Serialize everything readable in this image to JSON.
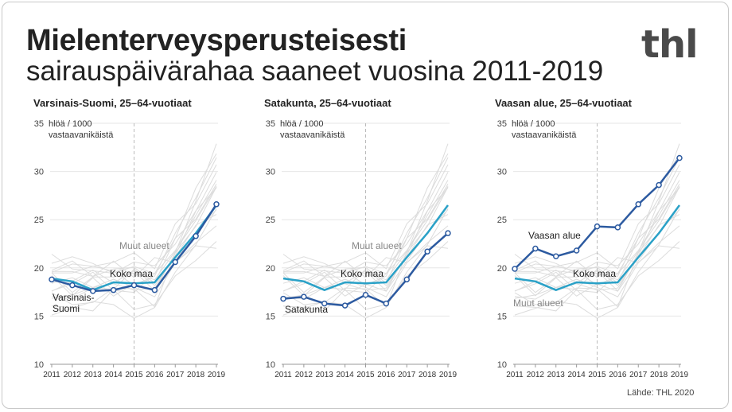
{
  "title": {
    "line1": "Mielenterveysperusteisesti",
    "line2": "sairauspäivärahaa saaneet vuosina 2011-2019"
  },
  "logo": "thl",
  "source": "Lähde: THL 2020",
  "colors": {
    "region": "#2c5aa0",
    "national": "#2aa1c7",
    "others": "#dcdcdc",
    "axis": "#999999",
    "grid": "#e6e6e6"
  },
  "chart_data": [
    {
      "type": "line",
      "title": "Varsinais-Suomi, 25–64-vuotiaat",
      "ylabel_line1": "hlöä / 1000",
      "ylabel_line2": "vastaavanikäistä",
      "x": [
        2011,
        2012,
        2013,
        2014,
        2015,
        2016,
        2017,
        2018,
        2019
      ],
      "ylim": [
        10,
        35
      ],
      "yticks": [
        10,
        15,
        20,
        25,
        30,
        35
      ],
      "series": [
        {
          "name": "Varsinais-Suomi",
          "label_lines": [
            "Varsinais-",
            "Suomi"
          ],
          "role": "region",
          "values": [
            18.8,
            18.2,
            17.6,
            17.7,
            18.2,
            17.7,
            20.6,
            23.3,
            26.6
          ]
        },
        {
          "name": "Koko maa",
          "label_lines": [
            "Koko maa"
          ],
          "role": "national",
          "values": [
            18.9,
            18.6,
            17.7,
            18.5,
            18.4,
            18.5,
            21.1,
            23.6,
            26.5
          ]
        }
      ],
      "others_label": "Muut alueet"
    },
    {
      "type": "line",
      "title": "Satakunta, 25–64-vuotiaat",
      "ylabel_line1": "hlöä / 1000",
      "ylabel_line2": "vastaavanikäistä",
      "x": [
        2011,
        2012,
        2013,
        2014,
        2015,
        2016,
        2017,
        2018,
        2019
      ],
      "ylim": [
        10,
        35
      ],
      "yticks": [
        10,
        15,
        20,
        25,
        30,
        35
      ],
      "series": [
        {
          "name": "Satakunta",
          "label_lines": [
            "Satakunta"
          ],
          "role": "region",
          "values": [
            16.8,
            17.0,
            16.3,
            16.1,
            17.2,
            16.3,
            18.8,
            21.7,
            23.6
          ]
        },
        {
          "name": "Koko maa",
          "label_lines": [
            "Koko maa"
          ],
          "role": "national",
          "values": [
            18.9,
            18.6,
            17.7,
            18.5,
            18.4,
            18.5,
            21.1,
            23.6,
            26.5
          ]
        }
      ],
      "others_label": "Muut alueet"
    },
    {
      "type": "line",
      "title": "Vaasan alue, 25–64-vuotiaat",
      "ylabel_line1": "hlöä / 1000",
      "ylabel_line2": "vastaavanikäistä",
      "x": [
        2011,
        2012,
        2013,
        2014,
        2015,
        2016,
        2017,
        2018,
        2019
      ],
      "ylim": [
        10,
        35
      ],
      "yticks": [
        10,
        15,
        20,
        25,
        30,
        35
      ],
      "series": [
        {
          "name": "Vaasan alue",
          "label_lines": [
            "Vaasan alue"
          ],
          "role": "region",
          "values": [
            19.9,
            22.0,
            21.2,
            21.8,
            24.3,
            24.2,
            26.6,
            28.6,
            31.4
          ]
        },
        {
          "name": "Koko maa",
          "label_lines": [
            "Koko maa"
          ],
          "role": "national",
          "values": [
            18.9,
            18.6,
            17.7,
            18.5,
            18.4,
            18.5,
            21.1,
            23.6,
            26.5
          ]
        }
      ],
      "others_label": "Muut alueet"
    }
  ]
}
